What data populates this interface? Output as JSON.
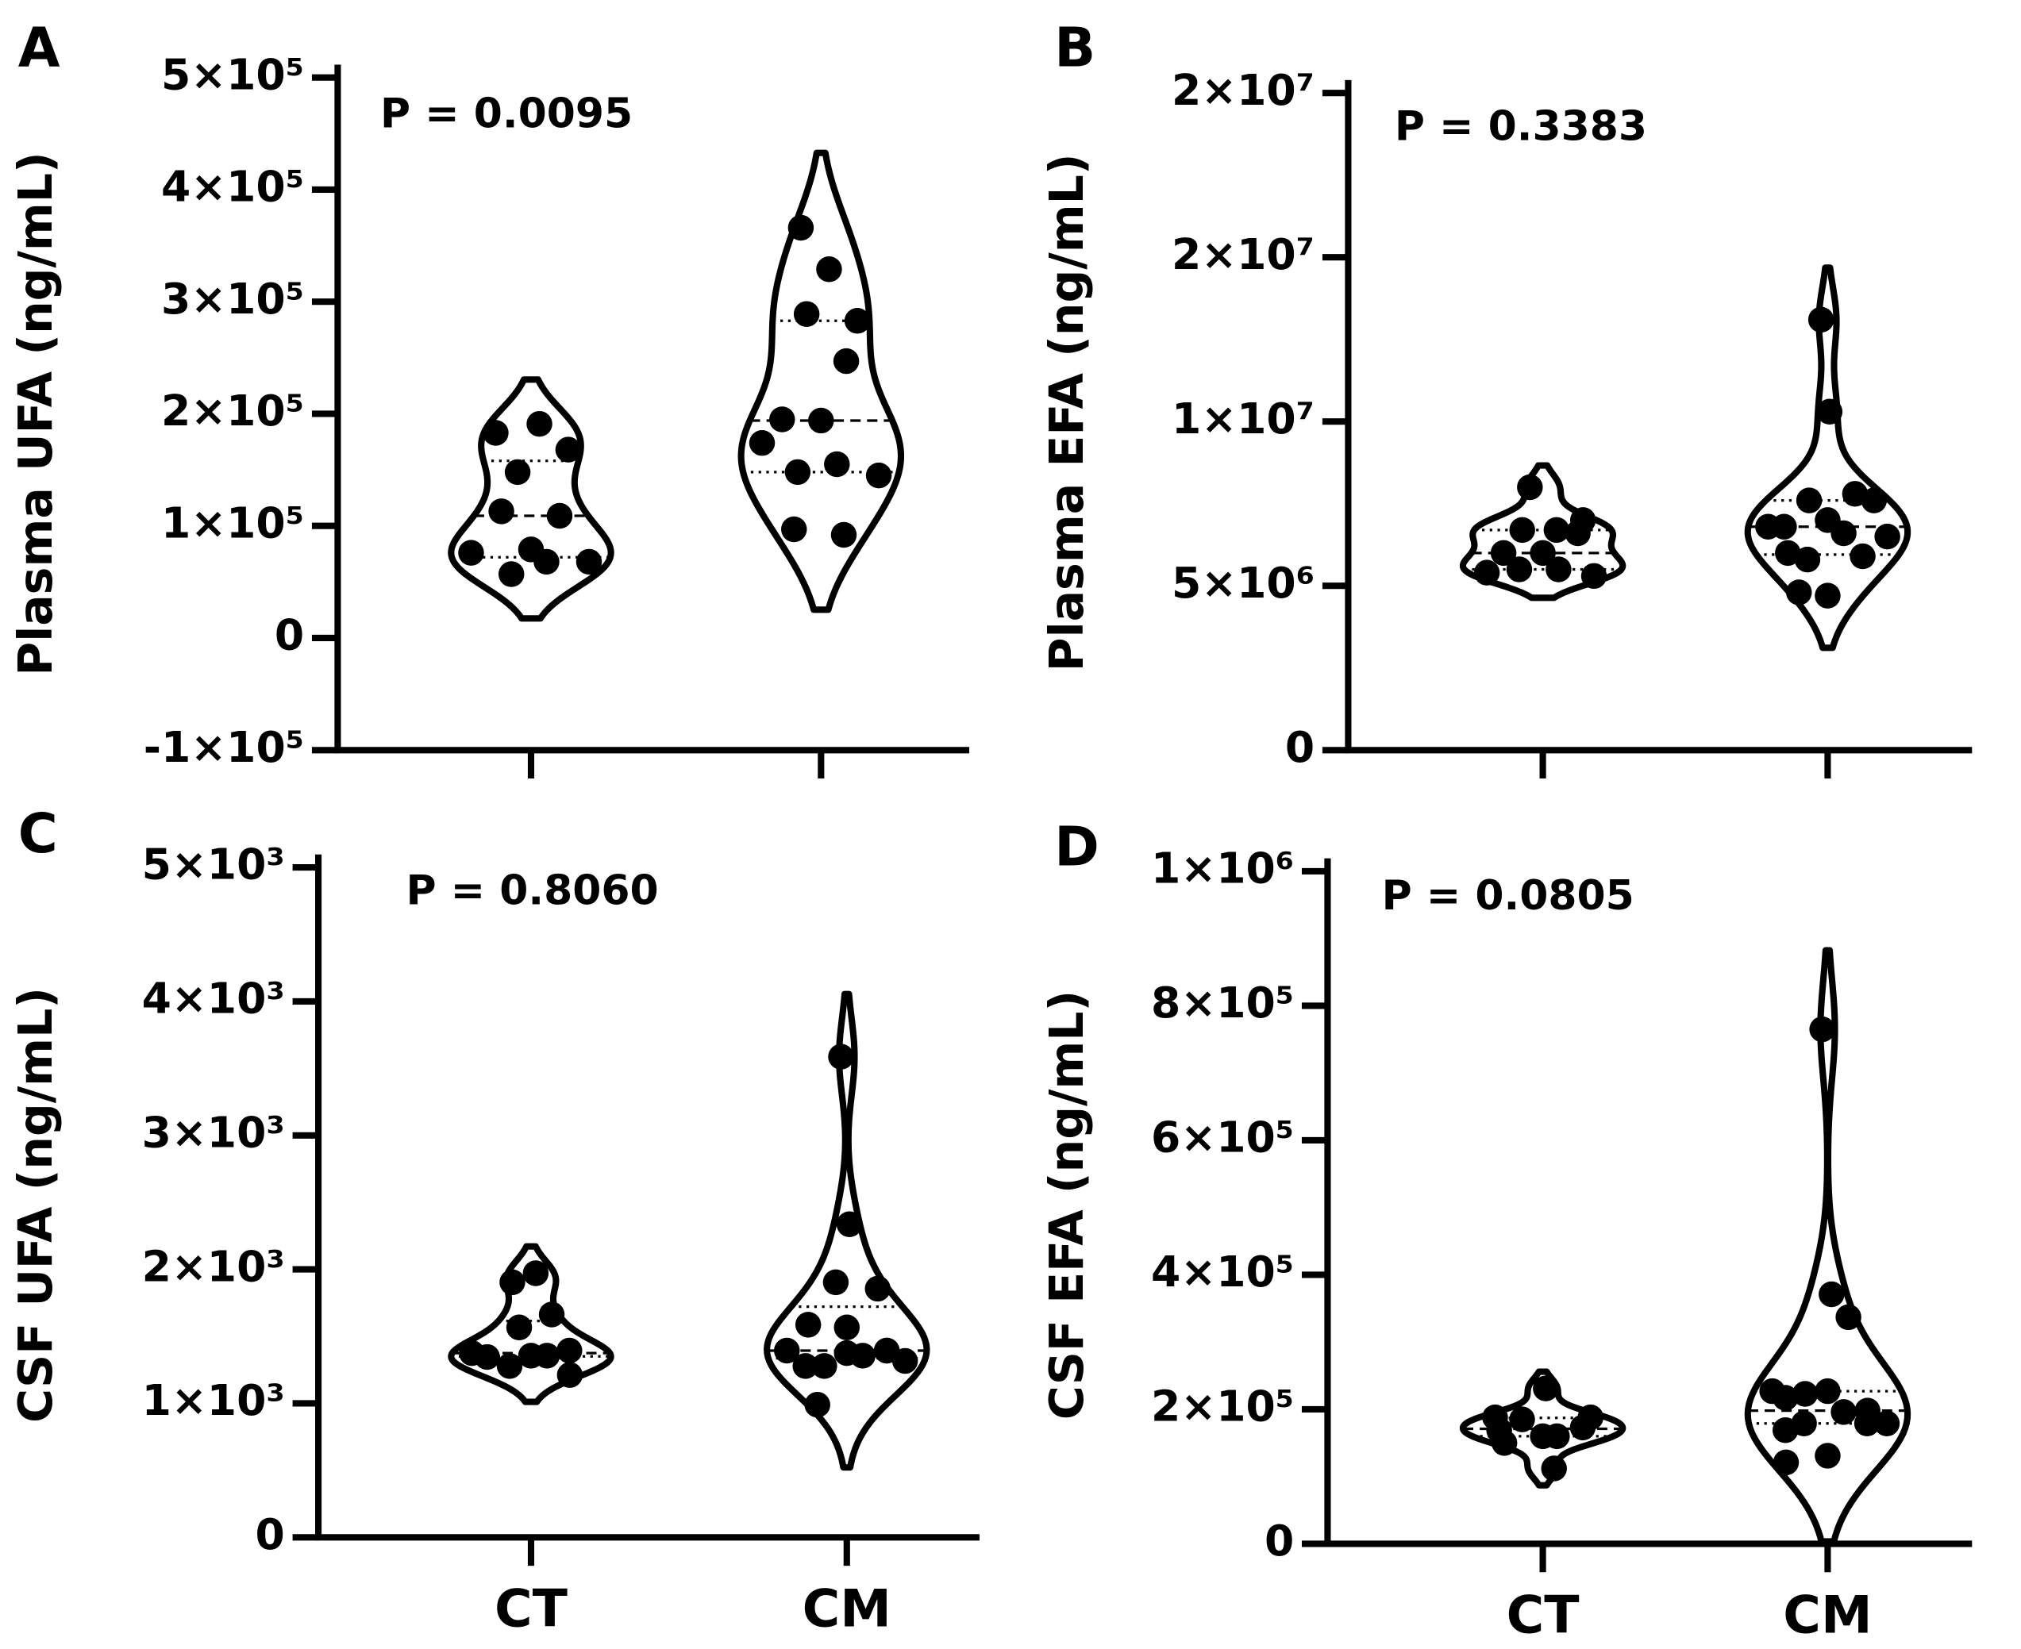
{
  "chart_data": [
    {
      "type": "violin",
      "panel_label": "A",
      "annotation": "P = 0.0095",
      "y_label": "Plasma UFA (ng/mL)",
      "categories": [
        null,
        null
      ],
      "color": "#000000",
      "series": [
        {
          "values": [
            183000,
            191000,
            168000,
            148000,
            109000,
            113000,
            79000,
            76000,
            68000,
            68000,
            57000
          ]
        },
        {
          "values": [
            366000,
            329000,
            283000,
            289000,
            247000,
            195000,
            194000,
            174000,
            155000,
            145000,
            148000,
            92000,
            97000
          ]
        }
      ],
      "ylim": [
        -100000,
        500000
      ],
      "yticks": [
        {
          "value": -100000,
          "label": "-1×10⁵"
        },
        0,
        {
          "value": 100000,
          "label": "1×10⁵"
        },
        {
          "value": 200000,
          "label": "2×10⁵"
        },
        {
          "value": 300000,
          "label": "3×10⁵"
        },
        {
          "value": 400000,
          "label": "4×10⁵"
        },
        {
          "value": 500000,
          "label": "5×10⁵"
        }
      ]
    },
    {
      "type": "violin",
      "panel_label": "B",
      "annotation": "P = 0.3383",
      "y_label": "Plasma EFA (ng/mL)",
      "categories": [
        null,
        null
      ],
      "color": "#000000",
      "series": [
        {
          "values": [
            8000000,
            6700000,
            7000000,
            6700000,
            6600000,
            6000000,
            6000000,
            5400000,
            5500000,
            5300000,
            5500000
          ]
        },
        {
          "values": [
            13100000,
            10300000,
            7600000,
            7600000,
            7800000,
            6800000,
            7000000,
            6800000,
            6600000,
            6500000,
            5800000,
            5900000,
            6000000,
            4700000,
            4800000
          ]
        }
      ],
      "ylim": [
        0,
        20000000
      ],
      "yticks": [
        0,
        {
          "value": 5000000,
          "label": "5×10⁶"
        },
        {
          "value": 10000000,
          "label": "1×10⁷"
        },
        {
          "value": 15000000,
          "label": "2×10⁷"
        },
        {
          "value": 20000000,
          "label": "2×10⁷"
        }
      ]
    },
    {
      "type": "violin",
      "panel_label": "C",
      "annotation": "P = 0.8060",
      "y_label": "CSF UFA (ng/mL)",
      "categories": [
        "CT",
        "CM"
      ],
      "color": "#000000",
      "series": [
        {
          "values": [
            1904,
            1971,
            1663,
            1567,
            1394,
            1346,
            1356,
            1375,
            1356,
            1212,
            1279
          ]
        },
        {
          "values": [
            3587,
            2337,
            1856,
            1904,
            1394,
            1587,
            1567,
            1394,
            1356,
            1317,
            1279,
            1394,
            1279,
            1375,
            990
          ]
        }
      ],
      "ylim": [
        0,
        5000
      ],
      "yticks": [
        0,
        {
          "value": 1000,
          "label": "1×10³"
        },
        {
          "value": 2000,
          "label": "2×10³"
        },
        {
          "value": 3000,
          "label": "3×10³"
        },
        {
          "value": 4000,
          "label": "4×10³"
        },
        {
          "value": 5000,
          "label": "5×10³"
        }
      ]
    },
    {
      "type": "violin",
      "panel_label": "D",
      "annotation": "P = 0.0805",
      "y_label": "CSF EFA (ng/mL)",
      "categories": [
        "CT",
        "CM"
      ],
      "color": "#000000",
      "series": [
        {
          "values": [
            188000,
            231000,
            188000,
            185000,
            173000,
            169000,
            160000,
            150000,
            160000,
            112000
          ]
        },
        {
          "values": [
            765000,
            371000,
            337000,
            223000,
            198000,
            217000,
            227000,
            227000,
            196000,
            179000,
            179000,
            179000,
            169000,
            131000,
            121000
          ]
        }
      ],
      "ylim": [
        0,
        1000000
      ],
      "yticks": [
        0,
        {
          "value": 200000,
          "label": "2×10⁵"
        },
        {
          "value": 400000,
          "label": "4×10⁵"
        },
        {
          "value": 600000,
          "label": "6×10⁵"
        },
        {
          "value": 800000,
          "label": "8×10⁵"
        },
        {
          "value": 1000000,
          "label": "1×10⁶"
        }
      ]
    }
  ]
}
